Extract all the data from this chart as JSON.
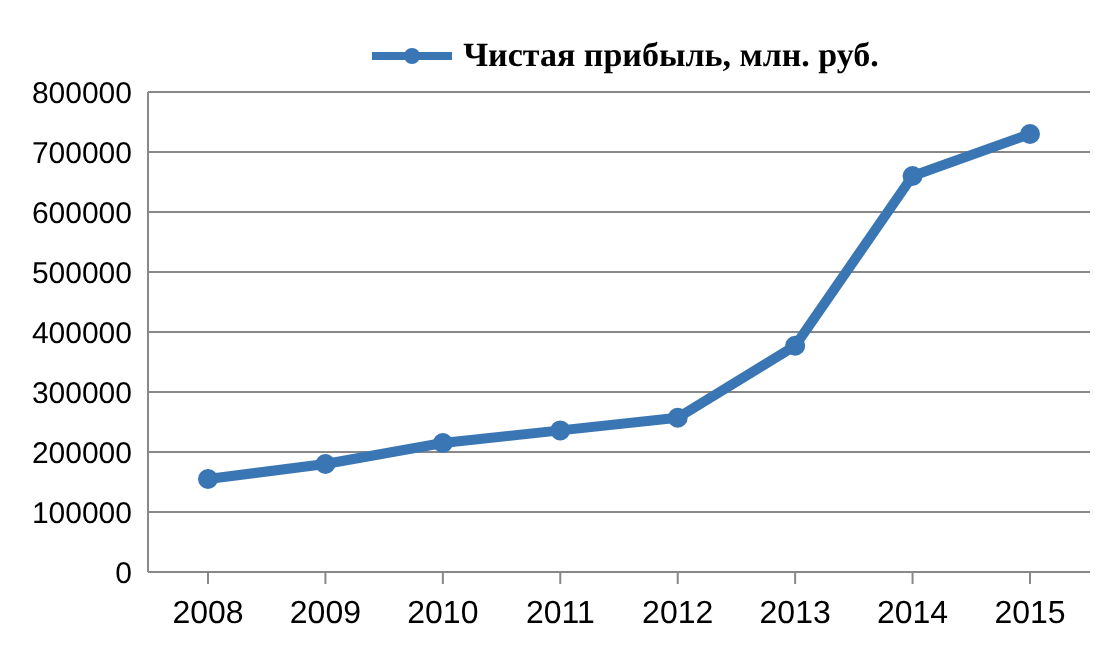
{
  "chart_data": {
    "type": "line",
    "categories": [
      "2008",
      "2009",
      "2010",
      "2011",
      "2012",
      "2013",
      "2014",
      "2015"
    ],
    "series": [
      {
        "name": "Чистая прибыль, млн. руб.",
        "color": "#3a76b3",
        "values": [
          155000,
          180000,
          215000,
          236000,
          257000,
          377000,
          660000,
          730000
        ]
      }
    ],
    "ylim": [
      0,
      800000
    ],
    "yticks": [
      0,
      100000,
      200000,
      300000,
      400000,
      500000,
      600000,
      700000,
      800000
    ],
    "grid": "y",
    "legend": "top",
    "marker": "circle",
    "line_style": "solid"
  }
}
